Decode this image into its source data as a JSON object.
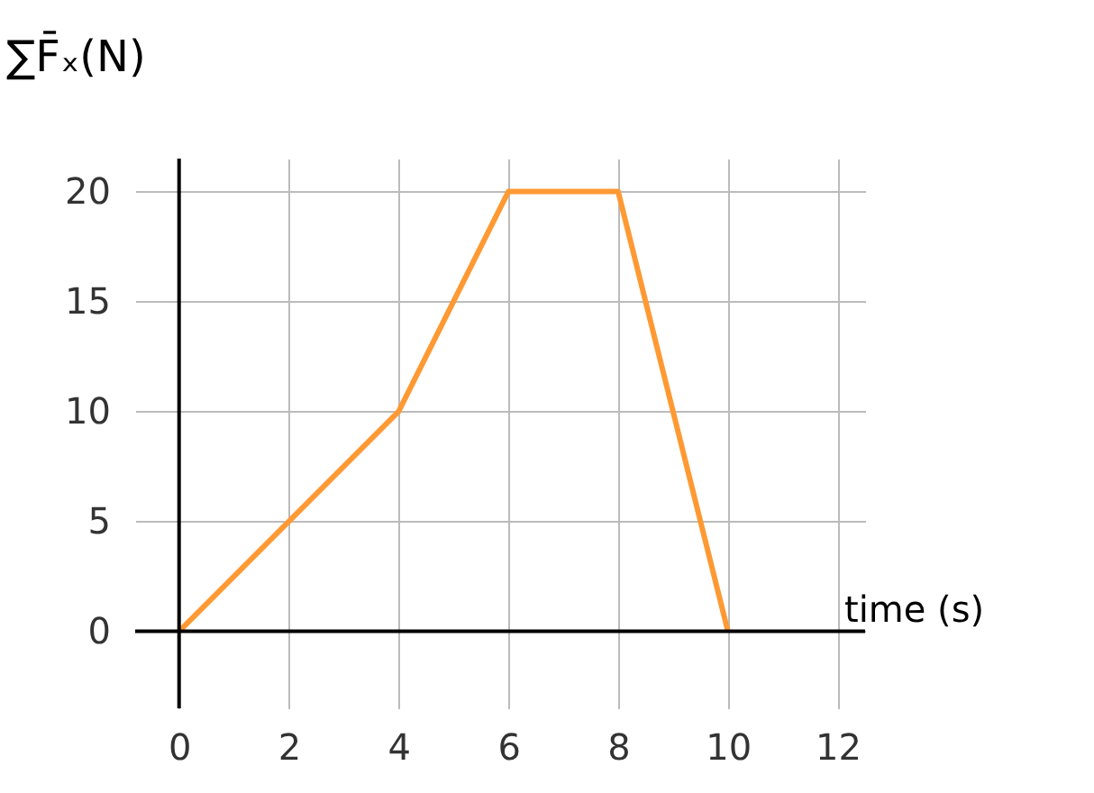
{
  "chart_data": {
    "type": "line",
    "xlabel": "time (s)",
    "ylabel": "∑F̄ₓ(N)",
    "x": [
      0,
      4,
      6,
      8,
      10
    ],
    "series": [
      {
        "color": "#ff9933",
        "values": [
          0,
          10,
          20,
          20,
          0
        ]
      }
    ],
    "xlim": [
      -0.8,
      12.5
    ],
    "ylim": [
      -3.5,
      21.5
    ],
    "xticks": [
      0,
      2,
      4,
      6,
      8,
      10,
      12
    ],
    "yticks": [
      0,
      5,
      10,
      15,
      20
    ],
    "grid": true,
    "marker": "none",
    "line_style": "solid"
  }
}
